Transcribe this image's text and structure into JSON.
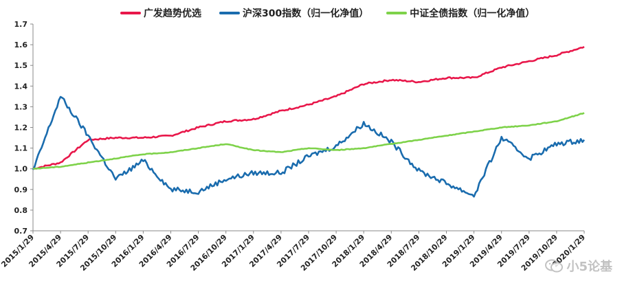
{
  "chart_data": {
    "type": "line",
    "title": "",
    "xlabel": "",
    "ylabel": "",
    "ylim": [
      0.7,
      1.7
    ],
    "yticks": [
      "0.7",
      "0.8",
      "0.9",
      "1.0",
      "1.1",
      "1.2",
      "1.3",
      "1.4",
      "1.5",
      "1.6",
      "1.7"
    ],
    "x": [
      "2015/1/29",
      "2015/4/29",
      "2015/7/29",
      "2015/10/29",
      "2016/1/29",
      "2016/4/29",
      "2016/7/29",
      "2016/10/29",
      "2017/1/29",
      "2017/4/29",
      "2017/7/29",
      "2017/10/29",
      "2018/1/29",
      "2018/4/29",
      "2018/7/29",
      "2018/10/29",
      "2019/1/29",
      "2019/4/29",
      "2019/7/29",
      "2019/10/29",
      "2020/1/29"
    ],
    "series": [
      {
        "name": "广发趋势优选",
        "color": "#e8174a",
        "values": [
          1.0,
          1.03,
          1.14,
          1.15,
          1.15,
          1.16,
          1.2,
          1.23,
          1.24,
          1.28,
          1.31,
          1.35,
          1.41,
          1.43,
          1.42,
          1.44,
          1.44,
          1.49,
          1.52,
          1.55,
          1.59
        ]
      },
      {
        "name": "沪深300指数（归一化净值）",
        "color": "#1a6cae",
        "values": [
          0.99,
          1.35,
          1.16,
          0.95,
          1.04,
          0.9,
          0.89,
          0.95,
          0.98,
          0.98,
          1.06,
          1.11,
          1.22,
          1.13,
          0.99,
          0.93,
          0.87,
          1.15,
          1.05,
          1.12,
          1.14
        ]
      },
      {
        "name": "中证全债指数（归一化净值）",
        "color": "#7ed24a",
        "values": [
          1.0,
          1.01,
          1.03,
          1.05,
          1.07,
          1.08,
          1.1,
          1.12,
          1.09,
          1.08,
          1.1,
          1.09,
          1.1,
          1.12,
          1.14,
          1.16,
          1.18,
          1.2,
          1.21,
          1.23,
          1.27
        ]
      }
    ],
    "legend": "top-center",
    "grid": false
  },
  "watermark": {
    "text": "小5论基"
  }
}
